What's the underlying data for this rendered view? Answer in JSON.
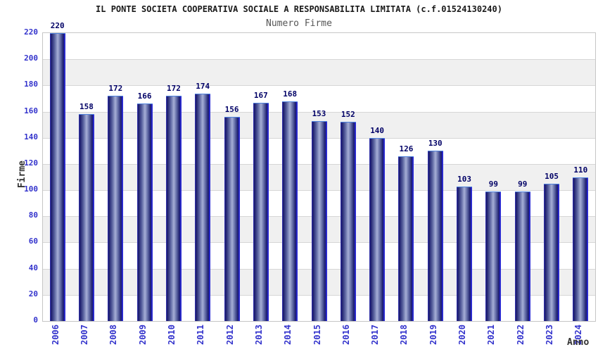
{
  "chart_data": {
    "type": "bar",
    "title": "IL PONTE SOCIETA COOPERATIVA SOCIALE A RESPONSABILITA LIMITATA (c.f.01524130240)",
    "subtitle": "Numero Firme",
    "xlabel": "Anno",
    "ylabel": "Firme",
    "categories": [
      "2006",
      "2007",
      "2008",
      "2009",
      "2010",
      "2011",
      "2012",
      "2013",
      "2014",
      "2015",
      "2016",
      "2017",
      "2018",
      "2019",
      "2020",
      "2021",
      "2022",
      "2023",
      "2024"
    ],
    "values": [
      220,
      158,
      172,
      166,
      172,
      174,
      156,
      167,
      168,
      153,
      152,
      140,
      126,
      130,
      103,
      99,
      99,
      105,
      110
    ],
    "ylim": [
      0,
      220
    ],
    "ytick_step": 20,
    "grid": true,
    "legend": "none",
    "band_colors": [
      "#ffffff",
      "#f0f0f0"
    ],
    "colors": {
      "bar_dark": "#18186a",
      "bar_light": "#a6afd6",
      "bar_edge_bright": "#2b2bd4",
      "bar_cap": "#4f82dd",
      "tick_label": "#3333cc",
      "value_label": "#000066",
      "title": "#1a1a1a",
      "subtitle": "#555555",
      "axis_label": "#333333",
      "grid_line": "#d6d6d6",
      "plot_border": "#c6c6c6"
    }
  }
}
